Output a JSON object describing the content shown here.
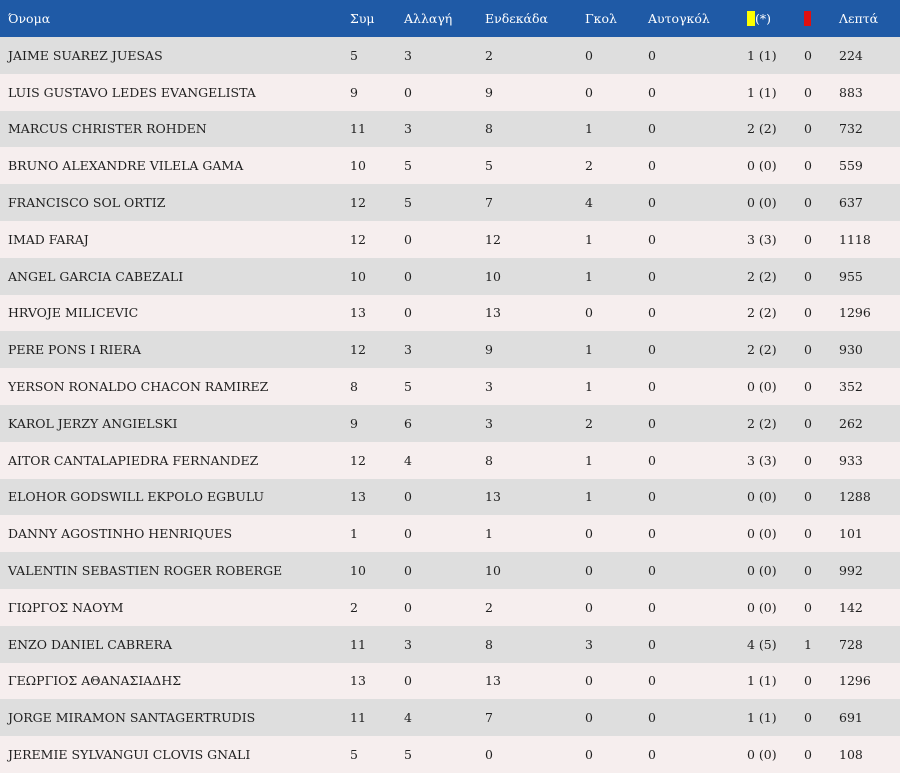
{
  "columns": {
    "name": "Όνομα",
    "apps": "Συμ",
    "subs": "Αλλαγή",
    "starts": "Ενδεκάδα",
    "goals": "Γκολ",
    "own_goals": "Αυτογκόλ",
    "yellow_suffix": "(*)",
    "minutes": "Λεπτά"
  },
  "icons": {
    "yellow": "yellow-card-icon",
    "red": "red-card-icon"
  },
  "colors": {
    "header": "#1f5aa6",
    "row_odd": "#dedede",
    "row_even": "#f6eeee",
    "yellow": "#ffff00",
    "red": "#e01010"
  },
  "rows": [
    {
      "name": "JAIME SUAREZ JUESAS",
      "apps": "5",
      "subs": "3",
      "starts": "2",
      "goals": "0",
      "own_goals": "0",
      "yellow": "1 (1)",
      "red": "0",
      "minutes": "224"
    },
    {
      "name": "LUIS GUSTAVO LEDES EVANGELISTA",
      "apps": "9",
      "subs": "0",
      "starts": "9",
      "goals": "0",
      "own_goals": "0",
      "yellow": "1 (1)",
      "red": "0",
      "minutes": "883"
    },
    {
      "name": "MARCUS CHRISTER ROHDEN",
      "apps": "11",
      "subs": "3",
      "starts": "8",
      "goals": "1",
      "own_goals": "0",
      "yellow": "2 (2)",
      "red": "0",
      "minutes": "732"
    },
    {
      "name": "BRUNO ALEXANDRE VILELA GAMA",
      "apps": "10",
      "subs": "5",
      "starts": "5",
      "goals": "2",
      "own_goals": "0",
      "yellow": "0 (0)",
      "red": "0",
      "minutes": "559"
    },
    {
      "name": "FRANCISCO SOL ORTIZ",
      "apps": "12",
      "subs": "5",
      "starts": "7",
      "goals": "4",
      "own_goals": "0",
      "yellow": "0 (0)",
      "red": "0",
      "minutes": "637"
    },
    {
      "name": "IMAD FARAJ",
      "apps": "12",
      "subs": "0",
      "starts": "12",
      "goals": "1",
      "own_goals": "0",
      "yellow": "3 (3)",
      "red": "0",
      "minutes": "1118"
    },
    {
      "name": "ANGEL GARCIA CABEZALI",
      "apps": "10",
      "subs": "0",
      "starts": "10",
      "goals": "1",
      "own_goals": "0",
      "yellow": "2 (2)",
      "red": "0",
      "minutes": "955"
    },
    {
      "name": "HRVOJE MILICEVIC",
      "apps": "13",
      "subs": "0",
      "starts": "13",
      "goals": "0",
      "own_goals": "0",
      "yellow": "2 (2)",
      "red": "0",
      "minutes": "1296"
    },
    {
      "name": "PERE PONS I RIERA",
      "apps": "12",
      "subs": "3",
      "starts": "9",
      "goals": "1",
      "own_goals": "0",
      "yellow": "2 (2)",
      "red": "0",
      "minutes": "930"
    },
    {
      "name": "YERSON RONALDO CHACON RAMIREZ",
      "apps": "8",
      "subs": "5",
      "starts": "3",
      "goals": "1",
      "own_goals": "0",
      "yellow": "0 (0)",
      "red": "0",
      "minutes": "352"
    },
    {
      "name": "KAROL JERZY ANGIELSKI",
      "apps": "9",
      "subs": "6",
      "starts": "3",
      "goals": "2",
      "own_goals": "0",
      "yellow": "2 (2)",
      "red": "0",
      "minutes": "262"
    },
    {
      "name": "AITOR CANTALAPIEDRA FERNANDEZ",
      "apps": "12",
      "subs": "4",
      "starts": "8",
      "goals": "1",
      "own_goals": "0",
      "yellow": "3 (3)",
      "red": "0",
      "minutes": "933"
    },
    {
      "name": "ELOHOR GODSWILL EKPOLO EGBULU",
      "apps": "13",
      "subs": "0",
      "starts": "13",
      "goals": "1",
      "own_goals": "0",
      "yellow": "0 (0)",
      "red": "0",
      "minutes": "1288"
    },
    {
      "name": "DANNY AGOSTINHO HENRIQUES",
      "apps": "1",
      "subs": "0",
      "starts": "1",
      "goals": "0",
      "own_goals": "0",
      "yellow": "0 (0)",
      "red": "0",
      "minutes": "101"
    },
    {
      "name": "VALENTIN SEBASTIEN ROGER ROBERGE",
      "apps": "10",
      "subs": "0",
      "starts": "10",
      "goals": "0",
      "own_goals": "0",
      "yellow": "0 (0)",
      "red": "0",
      "minutes": "992"
    },
    {
      "name": "ΓΙΩΡΓΟΣ ΝΑΟΥΜ",
      "apps": "2",
      "subs": "0",
      "starts": "2",
      "goals": "0",
      "own_goals": "0",
      "yellow": "0 (0)",
      "red": "0",
      "minutes": "142"
    },
    {
      "name": "ENZO DANIEL CABRERA",
      "apps": "11",
      "subs": "3",
      "starts": "8",
      "goals": "3",
      "own_goals": "0",
      "yellow": "4 (5)",
      "red": "1",
      "minutes": "728"
    },
    {
      "name": "ΓΕΩΡΓΙΟΣ ΑΘΑΝΑΣΙΑΔΗΣ",
      "apps": "13",
      "subs": "0",
      "starts": "13",
      "goals": "0",
      "own_goals": "0",
      "yellow": "1 (1)",
      "red": "0",
      "minutes": "1296"
    },
    {
      "name": "JORGE MIRAMON SANTAGERTRUDIS",
      "apps": "11",
      "subs": "4",
      "starts": "7",
      "goals": "0",
      "own_goals": "0",
      "yellow": "1 (1)",
      "red": "0",
      "minutes": "691"
    },
    {
      "name": "JEREMIE SYLVANGUI CLOVIS GNALI",
      "apps": "5",
      "subs": "5",
      "starts": "0",
      "goals": "0",
      "own_goals": "0",
      "yellow": "0 (0)",
      "red": "0",
      "minutes": "108"
    }
  ]
}
